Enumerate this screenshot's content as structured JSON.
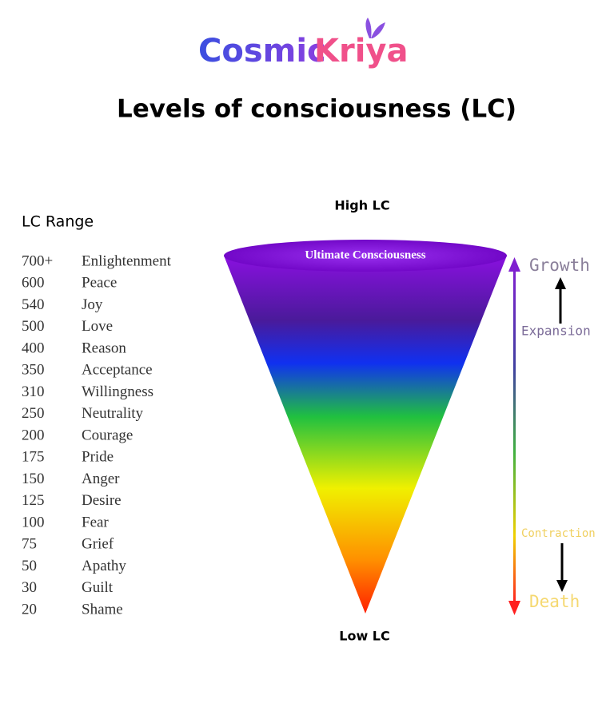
{
  "brand": {
    "first": "Cosmic",
    "second": "Kriya"
  },
  "title": "Levels of consciousness (LC)",
  "top_label": "High LC",
  "bottom_label": "Low LC",
  "range_header": "LC Range",
  "funnel_label": "Ultimate Consciousness",
  "side": {
    "growth": "Growth",
    "expansion": "Expansion",
    "contraction": "Contraction",
    "death": "Death"
  },
  "table": {
    "rows": [
      [
        "700+",
        "Enlightenment"
      ],
      [
        "600",
        "Peace"
      ],
      [
        "540",
        "Joy"
      ],
      [
        "500",
        "Love"
      ],
      [
        "400",
        "Reason"
      ],
      [
        "350",
        "Acceptance"
      ],
      [
        "310",
        "Willingness"
      ],
      [
        "250",
        "Neutrality"
      ],
      [
        "200",
        "Courage"
      ],
      [
        "175",
        "Pride"
      ],
      [
        "150",
        "Anger"
      ],
      [
        "125",
        "Desire"
      ],
      [
        "100",
        "Fear"
      ],
      [
        "75",
        "Grief"
      ],
      [
        "50",
        "Apathy"
      ],
      [
        "30",
        "Guilt"
      ],
      [
        "20",
        "Shame"
      ]
    ]
  }
}
